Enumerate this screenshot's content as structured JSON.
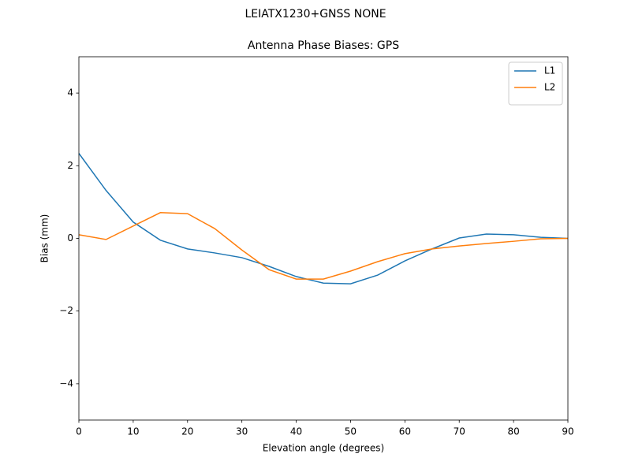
{
  "chart_data": {
    "type": "line",
    "suptitle": "LEIATX1230+GNSS NONE",
    "title": "Antenna Phase Biases: GPS",
    "xlabel": "Elevation angle (degrees)",
    "ylabel": "Bias (mm)",
    "x": [
      0,
      5,
      10,
      15,
      20,
      25,
      30,
      35,
      40,
      45,
      50,
      55,
      60,
      65,
      70,
      75,
      80,
      85,
      90
    ],
    "series": [
      {
        "name": "L1",
        "color": "#1f77b4",
        "values": [
          2.34,
          1.32,
          0.45,
          -0.05,
          -0.29,
          -0.4,
          -0.53,
          -0.77,
          -1.05,
          -1.23,
          -1.25,
          -1.01,
          -0.62,
          -0.29,
          0.01,
          0.12,
          0.1,
          0.03,
          0.0
        ]
      },
      {
        "name": "L2",
        "color": "#ff7f0e",
        "values": [
          0.1,
          -0.03,
          0.34,
          0.71,
          0.68,
          0.27,
          -0.32,
          -0.86,
          -1.12,
          -1.12,
          -0.9,
          -0.64,
          -0.42,
          -0.29,
          -0.21,
          -0.14,
          -0.08,
          -0.01,
          0.0
        ]
      }
    ],
    "xlim": [
      0,
      90
    ],
    "ylim": [
      -5,
      5
    ],
    "xticks": [
      0,
      10,
      20,
      30,
      40,
      50,
      60,
      70,
      80,
      90
    ],
    "yticks": [
      {
        "value": -4,
        "label": "−4"
      },
      {
        "value": -2,
        "label": "−2"
      },
      0,
      2,
      4
    ],
    "grid": false,
    "legend": "upper right"
  }
}
